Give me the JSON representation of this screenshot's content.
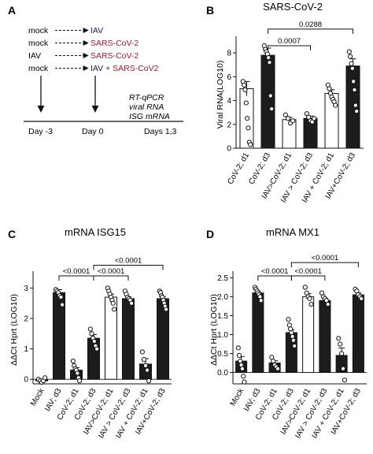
{
  "panel_labels": [
    "A",
    "B",
    "C",
    "D"
  ],
  "panel_a": {
    "rows": [
      {
        "pre": "mock",
        "post": "IAV",
        "post_color": "#1a1a40",
        "extra": ""
      },
      {
        "pre": "mock",
        "post": "SARS-CoV-2",
        "post_color": "#9b1c31",
        "extra": ""
      },
      {
        "pre": "IAV",
        "post": "SARS-CoV-2",
        "post_color": "#9b1c31",
        "extra": ""
      },
      {
        "pre": "mock",
        "post": "IAV + ",
        "post_color": "#1a1a40",
        "extra": "SARS-CoV2"
      }
    ],
    "readouts": [
      "RT-qPCR",
      "viral RNA",
      "ISG mRNA"
    ],
    "timeline": [
      "Day -3",
      "Day 0",
      "Days 1,3"
    ],
    "colors": {
      "iav": "#1a1a40",
      "sars": "#9b1c31"
    }
  },
  "chart_data": [
    {
      "type": "bar",
      "panel": "B",
      "title": "SARS-CoV-2",
      "ylabel": "Viral RNA(LOG10)",
      "ylim": [
        0,
        9
      ],
      "yticks": [
        0,
        2,
        4,
        6,
        8
      ],
      "categories": [
        "CoV-2; d1",
        "CoV-2; d3",
        "IAV>CoV-2; d1",
        "IAV > CoV-2; d3",
        "IAV + CoV-2; d1",
        "IAV+CoV-2; d3"
      ],
      "values": [
        5.0,
        7.8,
        2.4,
        2.5,
        4.6,
        6.9
      ],
      "fills": [
        "white",
        "black",
        "white",
        "black",
        "white",
        "black"
      ],
      "points": [
        [
          5.6,
          5.3,
          4.9,
          3.8,
          2.5,
          1.7,
          0.5,
          0.3
        ],
        [
          8.6,
          8.3,
          8.1,
          7.9,
          7.6,
          7.2,
          4.4,
          3.3
        ],
        [
          2.8,
          2.5,
          2.1,
          2.3
        ],
        [
          2.9,
          2.6,
          2.3,
          2.2,
          2.5
        ],
        [
          5.3,
          5.0,
          4.6,
          4.3,
          4.1,
          3.9,
          3.6
        ],
        [
          8.1,
          7.7,
          7.1,
          6.7,
          5.6,
          4.9,
          3.6,
          3.1
        ]
      ],
      "errors": [
        0.6,
        0.6,
        0.2,
        0.2,
        0.3,
        0.6
      ],
      "brackets": [
        {
          "from": 2,
          "to": 4,
          "y": 8.6,
          "label": "0.0007"
        },
        {
          "from": 2,
          "to": 6,
          "y": 10.0,
          "label": "0.0288"
        }
      ]
    },
    {
      "type": "bar",
      "panel": "C",
      "title": "mRNA ISG15",
      "ylabel": "ΔΔCt Hprt (LOG10)",
      "ylim": [
        -0.15,
        3.4
      ],
      "yticks": [
        0,
        1,
        2,
        3
      ],
      "categories": [
        "Mock",
        "IAV; d3",
        "CoV-2; d1",
        "CoV-2; d3",
        "IAV>CoV-2; d1",
        "IAV > CoV-2; d3",
        "IAV + CoV-2; d1",
        "IAV+CoV-2; d3"
      ],
      "values": [
        -0.05,
        2.85,
        0.3,
        1.35,
        2.7,
        2.65,
        0.5,
        2.65
      ],
      "fills": [
        "black",
        "black",
        "black",
        "black",
        "white",
        "black",
        "black",
        "black"
      ],
      "points": [
        [
          0.0,
          -0.05,
          -0.1,
          -0.05,
          0.05
        ],
        [
          2.95,
          2.9,
          2.85,
          2.75,
          2.7,
          2.45
        ],
        [
          0.6,
          0.45,
          0.35,
          0.3,
          0.2,
          0.05,
          -0.05
        ],
        [
          1.65,
          1.5,
          1.35,
          1.25,
          1.1,
          1.0
        ],
        [
          3.0,
          2.9,
          2.8,
          2.7,
          2.6,
          2.5,
          2.3
        ],
        [
          2.9,
          2.8,
          2.7,
          2.65,
          2.6,
          2.5
        ],
        [
          0.9,
          0.65,
          0.45,
          0.3,
          -0.05
        ],
        [
          2.9,
          2.85,
          2.75,
          2.7,
          2.6,
          2.5,
          2.4,
          2.3
        ]
      ],
      "errors": [
        0.03,
        0.1,
        0.08,
        0.12,
        0.1,
        0.06,
        0.18,
        0.07
      ],
      "brackets": [
        {
          "from": 2,
          "to": 4,
          "y": 3.4,
          "label": "<0.0001"
        },
        {
          "from": 4,
          "to": 6,
          "y": 3.4,
          "label": "<0.0001"
        },
        {
          "from": 4,
          "to": 8,
          "y": 3.75,
          "label": "<0.0001"
        }
      ]
    },
    {
      "type": "bar",
      "panel": "D",
      "title": "mRNA MX1",
      "ylabel": "ΔΔCt Hprt (LOG10)",
      "ylim": [
        -0.3,
        2.55
      ],
      "yticks": [
        0.0,
        0.5,
        1.0,
        1.5,
        2.0,
        2.5
      ],
      "categories": [
        "Mock",
        "IAV; d3",
        "CoV-2; d1",
        "CoV-2; d3",
        "IAV>CoV-2; d1",
        "IAV > CoV-2; d3",
        "IAV + CoV-2; d1",
        "IAV+CoV-2; d3"
      ],
      "values": [
        0.3,
        2.1,
        0.25,
        1.05,
        2.0,
        1.9,
        0.45,
        2.05
      ],
      "fills": [
        "black",
        "black",
        "black",
        "black",
        "white",
        "black",
        "black",
        "black"
      ],
      "points": [
        [
          0.65,
          0.45,
          0.3,
          0.2,
          0.1,
          -0.1,
          -0.25
        ],
        [
          2.25,
          2.2,
          2.15,
          2.1,
          2.05,
          2.0,
          1.9
        ],
        [
          0.4,
          0.3,
          0.2,
          0.15,
          0.1
        ],
        [
          1.4,
          1.25,
          1.15,
          1.05,
          0.95,
          0.85,
          0.7
        ],
        [
          2.25,
          2.1,
          2.0,
          1.95,
          1.8
        ],
        [
          2.1,
          2.0,
          1.95,
          1.9,
          1.8
        ],
        [
          0.9,
          0.75,
          0.5,
          0.1,
          -0.2
        ],
        [
          2.2,
          2.15,
          2.05,
          2.0,
          1.95
        ]
      ],
      "errors": [
        0.12,
        0.05,
        0.06,
        0.08,
        0.08,
        0.06,
        0.2,
        0.05
      ],
      "brackets": [
        {
          "from": 2,
          "to": 4,
          "y": 2.55,
          "label": "<0.0001"
        },
        {
          "from": 4,
          "to": 6,
          "y": 2.55,
          "label": "<0.0001"
        },
        {
          "from": 4,
          "to": 8,
          "y": 2.9,
          "label": "<0.0001"
        }
      ]
    }
  ]
}
